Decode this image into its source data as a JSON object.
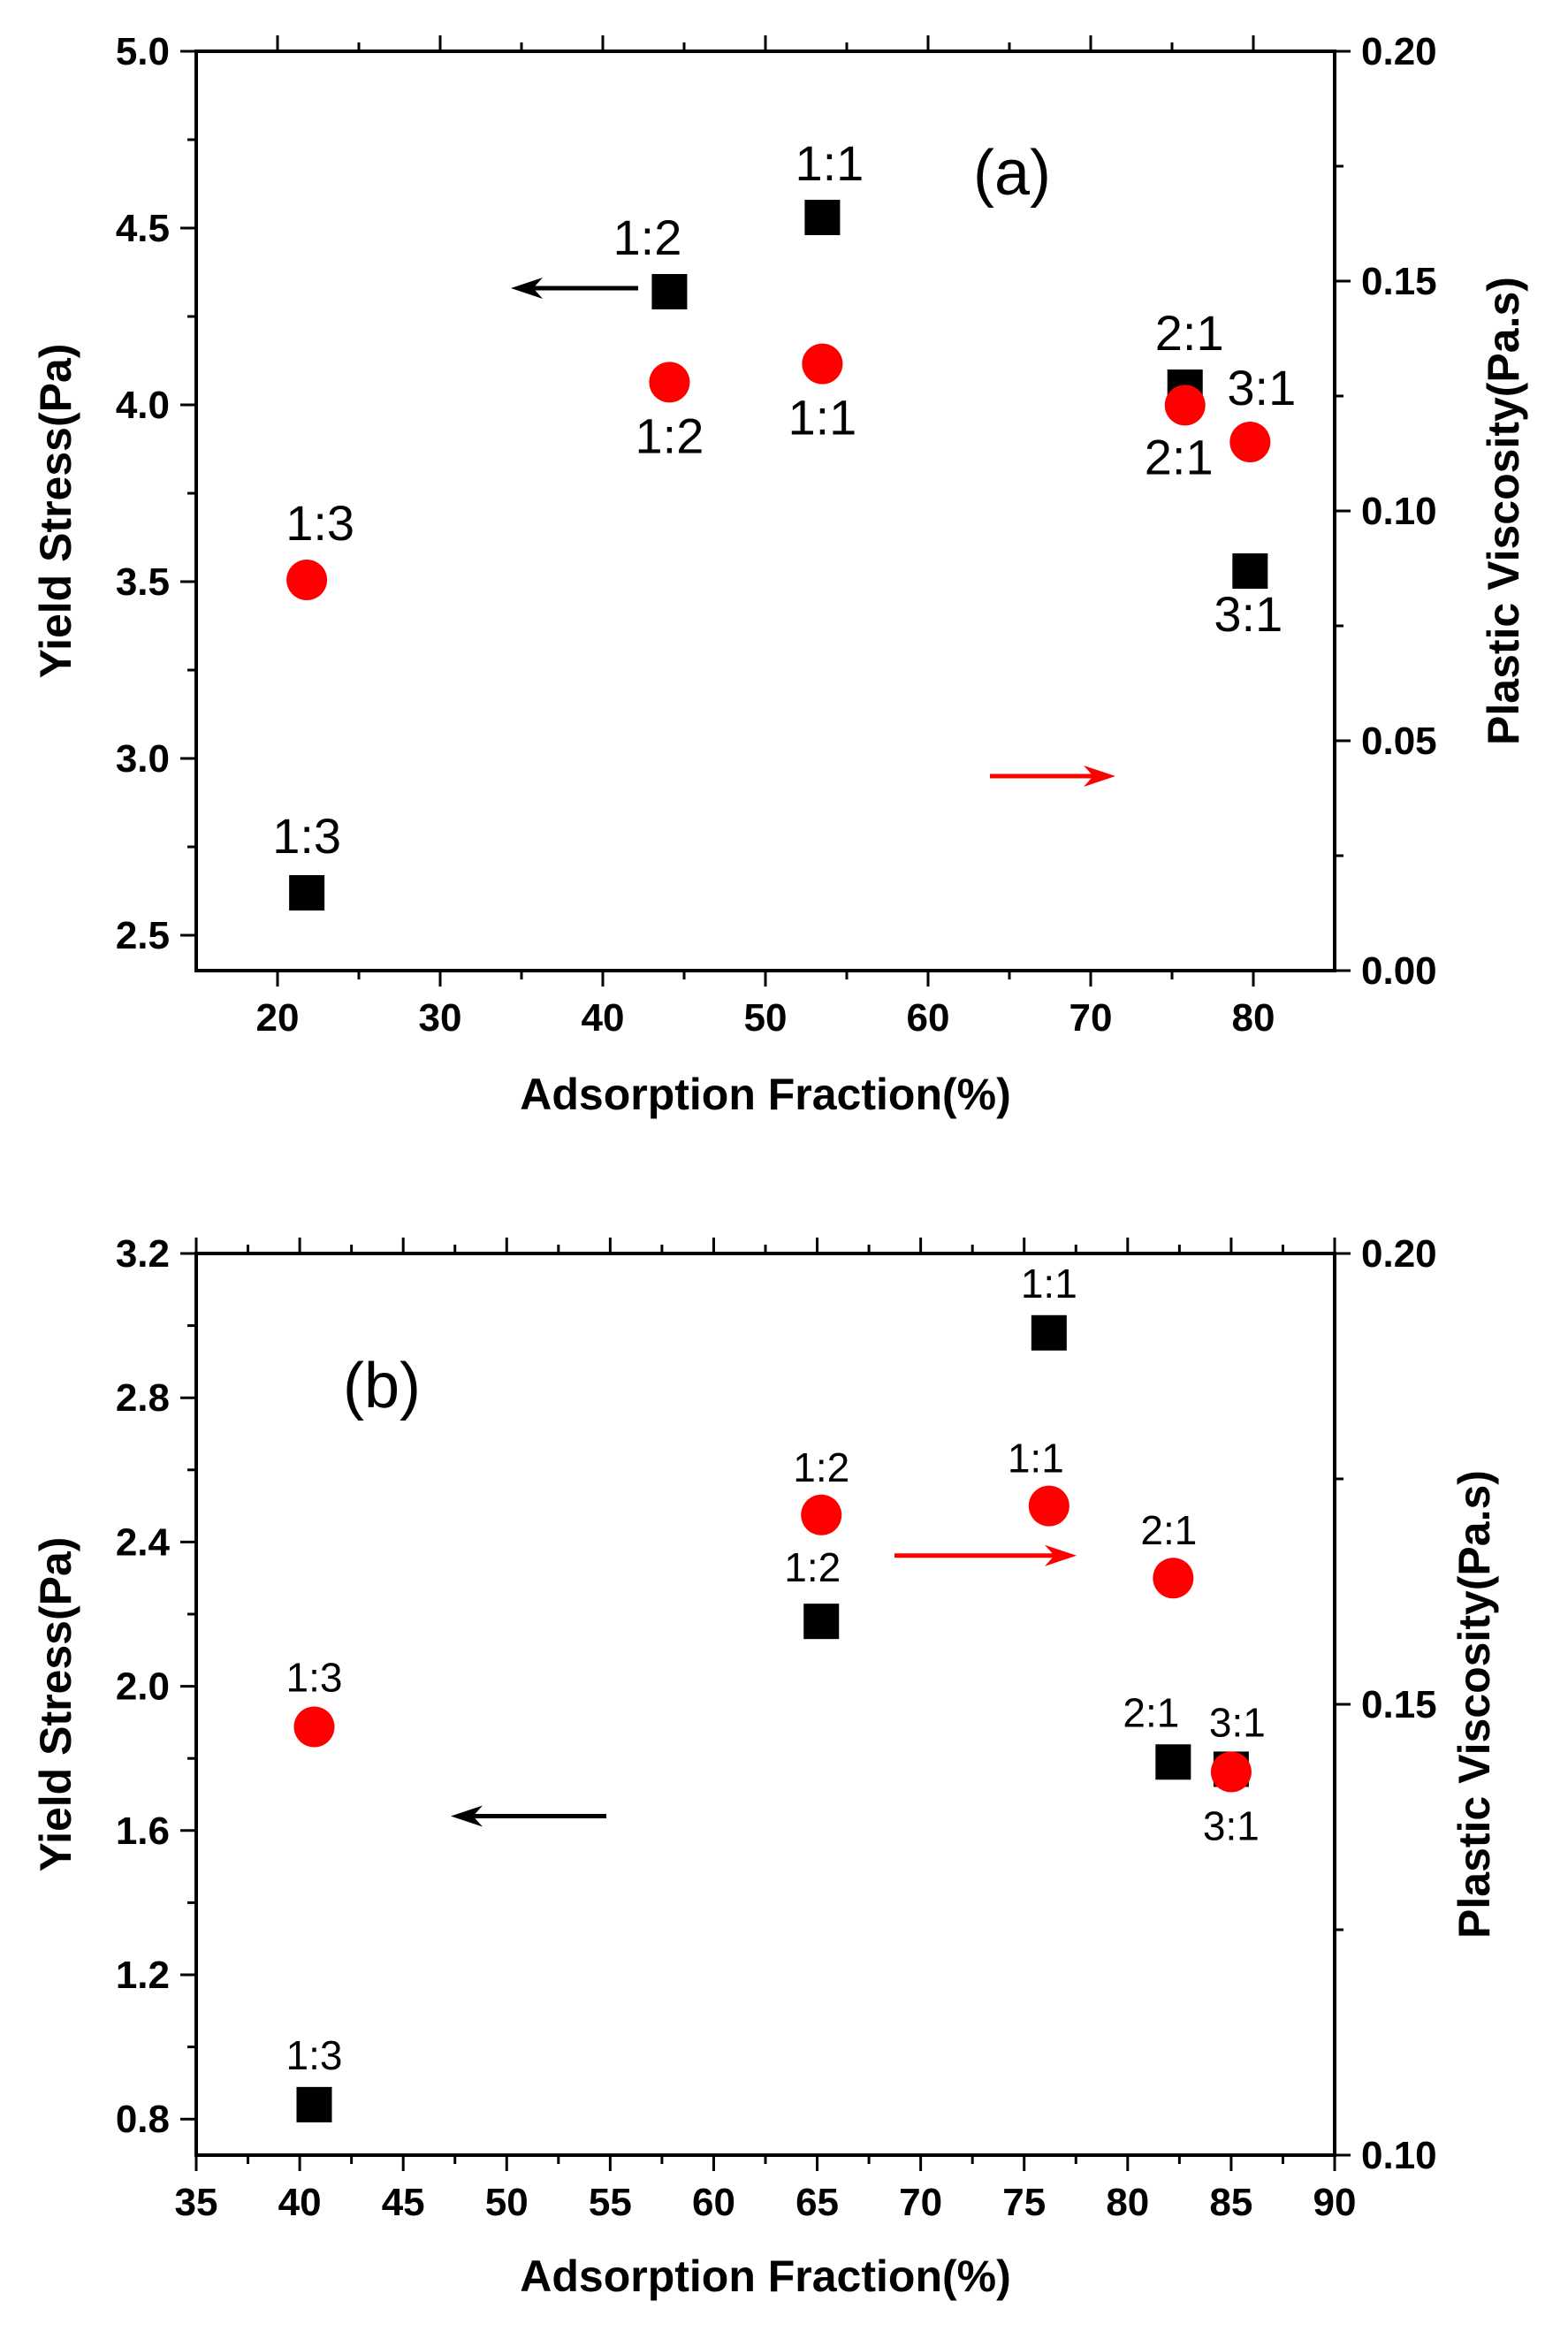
{
  "chart_data": [
    {
      "panel": "(a)",
      "type": "scatter",
      "xlabel": "Adsorption Fraction(%)",
      "ylabel_left": "Yield Stress(Pa)",
      "ylabel_right": "Plastic Viscosity(Pa.s)",
      "xlim": [
        15,
        85
      ],
      "ylim_left": [
        2.4,
        5.0
      ],
      "ylim_right": [
        0.0,
        0.2
      ],
      "xticks": [
        "20",
        "30",
        "40",
        "50",
        "60",
        "70",
        "80"
      ],
      "yticks_left": [
        "2.5",
        "3.0",
        "3.5",
        "4.0",
        "4.5",
        "5.0"
      ],
      "yticks_right": [
        "0.00",
        "0.05",
        "0.10",
        "0.15",
        "0.20"
      ],
      "series": [
        {
          "name": "Yield Stress",
          "axis": "left",
          "marker": "square",
          "color": "#000000",
          "x": [
            21.8,
            44.1,
            53.5,
            75.8,
            79.8
          ],
          "y": [
            2.62,
            4.32,
            4.53,
            4.05,
            3.53
          ],
          "labels": [
            "1:3",
            "1:2",
            "1:1",
            "2:1",
            "3:1"
          ]
        },
        {
          "name": "Plastic Viscosity",
          "axis": "right",
          "marker": "circle",
          "color": "#ff0000",
          "x": [
            21.8,
            44.1,
            53.5,
            75.8,
            79.8
          ],
          "y": [
            0.085,
            0.128,
            0.132,
            0.123,
            0.115
          ],
          "labels": [
            "1:3",
            "1:2",
            "1:1",
            "2:1",
            "3:1"
          ]
        }
      ],
      "arrows": [
        {
          "direction": "left",
          "color": "#000000",
          "points_to": "Yield Stress axis"
        },
        {
          "direction": "right",
          "color": "#ff0000",
          "points_to": "Plastic Viscosity axis"
        }
      ]
    },
    {
      "panel": "(b)",
      "type": "scatter",
      "xlabel": "Adsorption Fraction(%)",
      "ylabel_left": "Yield Stress(Pa)",
      "ylabel_right": "Plastic Viscosity(Pa.s)",
      "xlim": [
        35,
        90
      ],
      "ylim_left": [
        0.7,
        3.2
      ],
      "ylim_right": [
        0.1,
        0.2
      ],
      "xticks": [
        "35",
        "40",
        "45",
        "50",
        "55",
        "60",
        "65",
        "70",
        "75",
        "80",
        "85",
        "90"
      ],
      "yticks_left": [
        "0.8",
        "1.2",
        "1.6",
        "2.0",
        "2.4",
        "2.8",
        "3.2"
      ],
      "yticks_right": [
        "0.10",
        "0.15",
        "0.20"
      ],
      "series": [
        {
          "name": "Yield Stress",
          "axis": "left",
          "marker": "square",
          "color": "#000000",
          "x": [
            40.7,
            65.2,
            76.2,
            82.2,
            85.0
          ],
          "y": [
            0.84,
            2.18,
            2.98,
            1.79,
            1.77
          ],
          "labels": [
            "1:3",
            "1:2",
            "1:1",
            "2:1",
            "3:1"
          ]
        },
        {
          "name": "Plastic Viscosity",
          "axis": "right",
          "marker": "circle",
          "color": "#ff0000",
          "x": [
            40.7,
            65.2,
            76.2,
            82.2,
            85.0
          ],
          "y": [
            0.1475,
            0.171,
            0.172,
            0.164,
            0.1425
          ],
          "labels": [
            "1:3",
            "1:2",
            "1:1",
            "2:1",
            "3:1"
          ]
        }
      ],
      "arrows": [
        {
          "direction": "left",
          "color": "#000000",
          "points_to": "Yield Stress axis"
        },
        {
          "direction": "right",
          "color": "#ff0000",
          "points_to": "Plastic Viscosity axis"
        }
      ]
    }
  ]
}
